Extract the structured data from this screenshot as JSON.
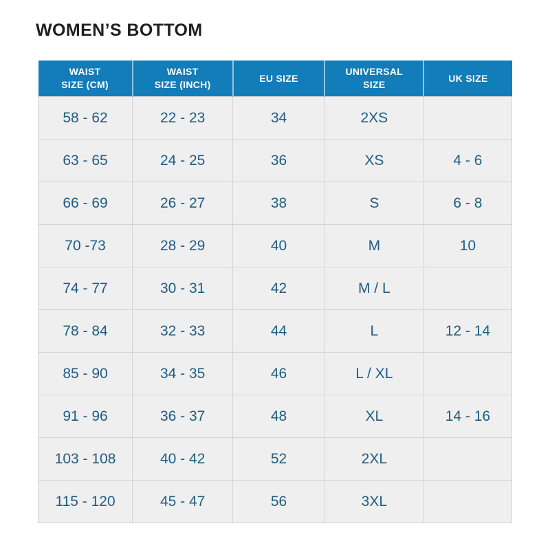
{
  "page": {
    "title": "WOMEN’S BOTTOM"
  },
  "colors": {
    "header_background": "#127db8",
    "header_text": "#ffffff",
    "cell_background": "#efefef",
    "cell_text": "#1d5d80",
    "grid_line": "#d4d4d4",
    "title_text": "#1f1f1f"
  },
  "table": {
    "headers": [
      "WAIST\nSIZE (CM)",
      "WAIST\nSIZE (INCH)",
      "EU SIZE",
      "UNIVERSAL\nSIZE",
      "UK SIZE"
    ],
    "rows": [
      [
        "58 - 62",
        "22 - 23",
        "34",
        "2XS",
        ""
      ],
      [
        "63 - 65",
        "24 - 25",
        "36",
        "XS",
        "4 - 6"
      ],
      [
        "66 - 69",
        "26 - 27",
        "38",
        "S",
        "6 - 8"
      ],
      [
        "70 -73",
        "28 - 29",
        "40",
        "M",
        "10"
      ],
      [
        "74 - 77",
        "30 - 31",
        "42",
        "M / L",
        ""
      ],
      [
        "78 - 84",
        "32 - 33",
        "44",
        "L",
        "12 - 14"
      ],
      [
        "85 - 90",
        "34 - 35",
        "46",
        "L / XL",
        ""
      ],
      [
        "91 - 96",
        "36 - 37",
        "48",
        "XL",
        "14 - 16"
      ],
      [
        "103 - 108",
        "40 - 42",
        "52",
        "2XL",
        ""
      ],
      [
        "115 - 120",
        "45 - 47",
        "56",
        "3XL",
        ""
      ]
    ]
  }
}
